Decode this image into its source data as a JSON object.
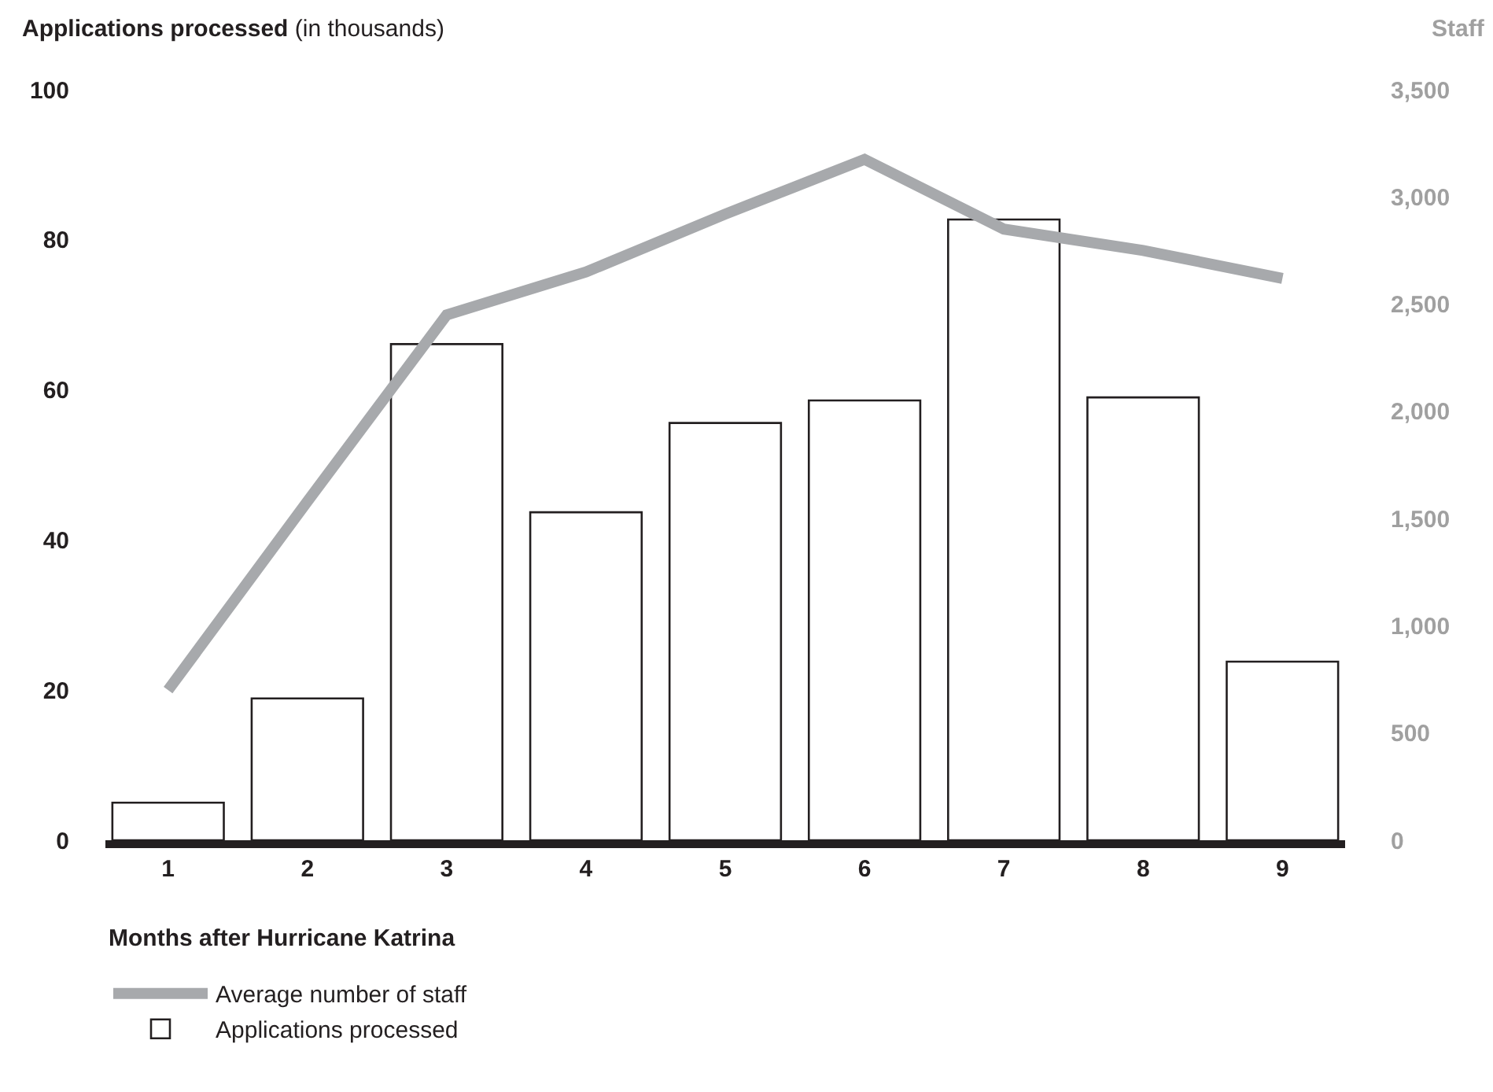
{
  "chart_data": {
    "type": "bar",
    "ylabel": "Applications processed (in thousands)",
    "y2label": "Staff",
    "xlabel": "Months after Hurricane Katrina",
    "categories": [
      "1",
      "2",
      "3",
      "4",
      "5",
      "6",
      "7",
      "8",
      "9"
    ],
    "series": [
      {
        "name": "Average number of staff",
        "type": "line",
        "axis": "y2",
        "color": "#a7a9ac",
        "values": [
          700,
          1580,
          2450,
          2650,
          2920,
          3175,
          2850,
          2750,
          2620
        ]
      },
      {
        "name": "Applications processed",
        "color": "#ffffff",
        "values": [
          5.0,
          18.9,
          66.1,
          43.7,
          55.6,
          58.6,
          82.7,
          59.0,
          23.8
        ]
      }
    ],
    "ylim": [
      0,
      100
    ],
    "yticks": [
      0,
      20,
      40,
      60,
      80,
      100
    ],
    "y2lim": [
      0,
      3500
    ],
    "y2ticks": [
      0,
      500,
      {
        "value": 1000,
        "label": "1,000"
      },
      {
        "value": 1500,
        "label": "1,500"
      },
      {
        "value": 2000,
        "label": "2,000"
      },
      {
        "value": 2500,
        "label": "2,500"
      },
      {
        "value": 3000,
        "label": "3,000"
      },
      {
        "value": 3500,
        "label": "3,500"
      }
    ],
    "legend": "bottom left",
    "marker": "none",
    "line_style": "solid"
  }
}
